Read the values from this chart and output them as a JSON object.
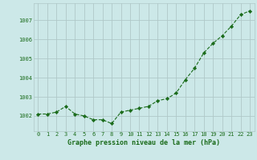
{
  "x": [
    0,
    1,
    2,
    3,
    4,
    5,
    6,
    7,
    8,
    9,
    10,
    11,
    12,
    13,
    14,
    15,
    16,
    17,
    18,
    19,
    20,
    21,
    22,
    23
  ],
  "y": [
    1002.1,
    1002.1,
    1002.2,
    1002.5,
    1002.1,
    1002.0,
    1001.8,
    1001.8,
    1001.6,
    1002.2,
    1002.3,
    1002.4,
    1002.5,
    1002.8,
    1002.9,
    1003.2,
    1003.9,
    1004.5,
    1005.3,
    1005.8,
    1006.2,
    1006.7,
    1007.3,
    1007.5
  ],
  "line_color": "#1a6b1a",
  "marker_color": "#1a6b1a",
  "bg_color": "#cce8e8",
  "grid_color": "#b0c8c8",
  "xlabel": "Graphe pression niveau de la mer (hPa)",
  "ylabel_ticks": [
    1002,
    1003,
    1004,
    1005,
    1006,
    1007
  ],
  "ylim": [
    1001.2,
    1007.9
  ],
  "xlim": [
    -0.5,
    23.5
  ],
  "font_color": "#1a6b1a",
  "tick_fontsize": 5,
  "xlabel_fontsize": 6
}
